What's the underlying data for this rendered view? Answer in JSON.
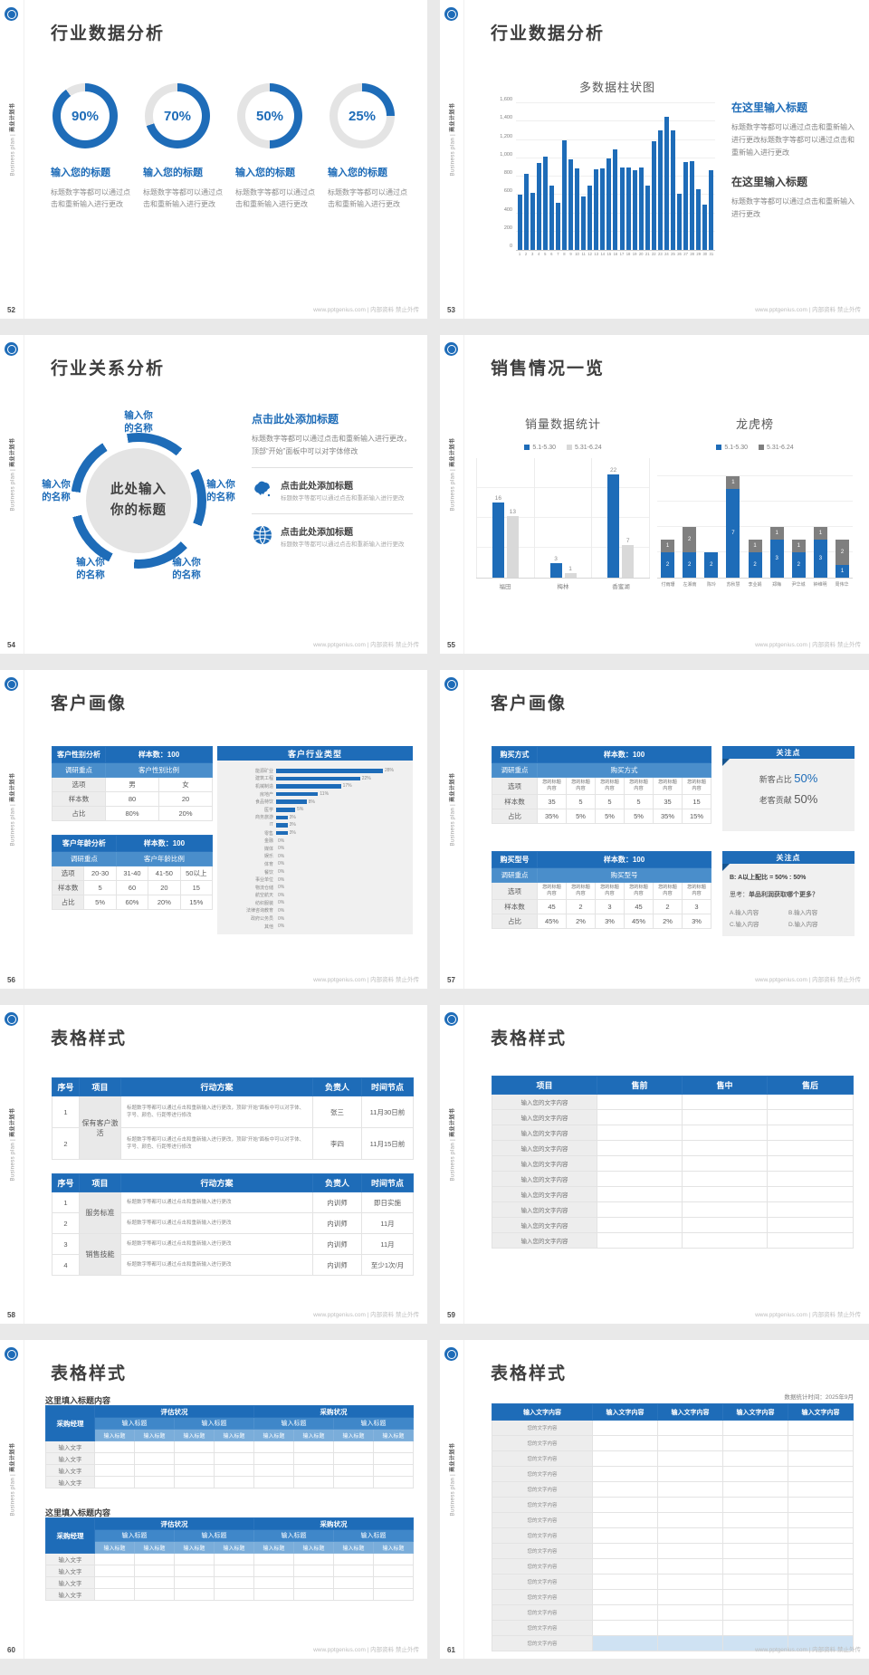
{
  "colors": {
    "primary": "#1e6cb8",
    "mid_blue": "#4a8ecb",
    "row2_blue": "#3f87c9",
    "row3_blue": "#7aadda",
    "bar_gray": "#d9d9d9",
    "dark_gray": "#7f7f7f",
    "panel_gray": "#f0f0f0",
    "highlight": "#cfe2f3"
  },
  "footer": {
    "site": "www.pptgenius.com | 内部资料 禁止外传"
  },
  "sidebar": {
    "en": "Business plan",
    "sep": "|",
    "zh": "商业计划书"
  },
  "slides": {
    "s52": {
      "page": "52",
      "title": "行业数据分析",
      "item_title": "输入您的标题",
      "item_desc": "标题数字等都可以通过点击和重新输入进行更改",
      "donuts": [
        {
          "percent": 90,
          "label": "90%"
        },
        {
          "percent": 70,
          "label": "70%"
        },
        {
          "percent": 50,
          "label": "50%"
        },
        {
          "percent": 25,
          "label": "25%"
        }
      ]
    },
    "s53": {
      "page": "53",
      "title": "行业数据分析",
      "blocks": [
        {
          "title": "在这里输入标题",
          "desc": "标题数字等都可以通过点击和重新输入进行更改标题数字等都可以通过点击和重新输入进行更改"
        },
        {
          "title": "在这里输入标题",
          "desc": "标题数字等都可以通过点击和重新输入进行更改"
        }
      ]
    },
    "s54": {
      "page": "54",
      "title": "行业关系分析",
      "center_line1": "此处输入",
      "center_line2": "你的标题",
      "node_line1": "输入你",
      "node_line2": "的名称",
      "right_title": "点击此处添加标题",
      "right_desc": "标题数字等都可以通过点击和重新输入进行更改，顶部“开始”面板中可以对字体修改",
      "items": [
        {
          "icon": "china-map-icon",
          "title": "点击此处添加标题",
          "desc": "标题数字等都可以通过点击和重新输入进行更改"
        },
        {
          "icon": "globe-icon",
          "title": "点击此处添加标题",
          "desc": "标题数字等都可以通过点击和重新输入进行更改"
        }
      ]
    },
    "s55": {
      "page": "55",
      "title": "销售情况一览"
    },
    "s56": {
      "page": "56",
      "title": "客户画像",
      "tables": [
        {
          "head_left": "客户性别分析",
          "head_right": "样本数：100",
          "sub_left": "调研重点",
          "sub_right": "客户性别比例",
          "rows": [
            [
              "选项",
              "男",
              "女"
            ],
            [
              "样本数",
              "80",
              "20"
            ],
            [
              "占比",
              "80%",
              "20%"
            ]
          ]
        },
        {
          "head_left": "客户年龄分析",
          "head_right": "样本数：100",
          "sub_left": "调研重点",
          "sub_right": "客户年龄比例",
          "rows": [
            [
              "选项",
              "20-30",
              "31-40",
              "41-50",
              "50以上"
            ],
            [
              "样本数",
              "5",
              "60",
              "20",
              "15"
            ],
            [
              "占比",
              "5%",
              "60%",
              "20%",
              "15%"
            ]
          ]
        }
      ]
    },
    "s57": {
      "page": "57",
      "title": "客户画像",
      "tables": [
        {
          "head_left": "购买方式",
          "head_right": "样本数：100",
          "sub_left": "调研重点",
          "sub_right": "购买方式",
          "option_label": "选项",
          "option_cell": "您的标题内容",
          "option_count": 6,
          "rows": [
            [
              "样本数",
              "35",
              "5",
              "5",
              "5",
              "35",
              "15"
            ],
            [
              "占比",
              "35%",
              "5%",
              "5%",
              "5%",
              "35%",
              "15%"
            ]
          ]
        },
        {
          "head_left": "购买型号",
          "head_right": "样本数：100",
          "sub_left": "调研重点",
          "sub_right": "购买型号",
          "option_label": "选项",
          "option_cell": "您的标题内容",
          "option_count": 6,
          "rows": [
            [
              "样本数",
              "45",
              "2",
              "3",
              "45",
              "2",
              "3"
            ],
            [
              "占比",
              "45%",
              "2%",
              "3%",
              "45%",
              "2%",
              "3%"
            ]
          ]
        }
      ],
      "panel1": {
        "title": "关注点",
        "lines": [
          {
            "label": "新客占比 ",
            "value": "50%"
          },
          {
            "label": "老客贡献 ",
            "value": "50%"
          }
        ]
      },
      "panel2": {
        "title": "关注点",
        "bold_line": "B: A以上配比 = 50% : 50%",
        "think_prefix": "思考：",
        "think_bold": "单品利润获取哪个更多？",
        "options": [
          "A.输入内容",
          "B.输入内容",
          "C.输入内容",
          "D.输入内容"
        ]
      }
    },
    "s58": {
      "page": "58",
      "title": "表格样式",
      "headers": [
        "序号",
        "项目",
        "行动方案",
        "负责人",
        "时间节点"
      ],
      "tables": [
        {
          "groups": [
            {
              "label": "保有客户激活",
              "rows": [
                {
                  "no": "1",
                  "plan": "标题数字等都可以通过点击和重新输入进行更改，顶部“开始”面板中可以对字体、字号、颜色、行距等进行修改",
                  "owner": "张三",
                  "time": "11月30日前"
                },
                {
                  "no": "2",
                  "plan": "标题数字等都可以通过点击和重新输入进行更改，顶部“开始”面板中可以对字体、字号、颜色、行距等进行修改",
                  "owner": "李四",
                  "time": "11月15日前"
                }
              ]
            }
          ]
        },
        {
          "groups": [
            {
              "label": "服务标准",
              "rows": [
                {
                  "no": "1",
                  "plan": "标题数字等都可以通过点击和重新输入进行更改",
                  "owner": "内训师",
                  "time": "即日实施"
                },
                {
                  "no": "2",
                  "plan": "标题数字等都可以通过点击和重新输入进行更改",
                  "owner": "内训师",
                  "time": "11月"
                }
              ]
            },
            {
              "label": "销售技能",
              "rows": [
                {
                  "no": "3",
                  "plan": "标题数字等都可以通过点击和重新输入进行更改",
                  "owner": "内训师",
                  "time": "11月"
                },
                {
                  "no": "4",
                  "plan": "标题数字等都可以通过点击和重新输入进行更改",
                  "owner": "内训师",
                  "time": "至少1次/月"
                }
              ]
            }
          ]
        }
      ]
    },
    "s59": {
      "page": "59",
      "title": "表格样式",
      "headers": [
        "项目",
        "售前",
        "售中",
        "售后"
      ],
      "row_label": "输入您的文字内容",
      "row_count": 10
    },
    "s60": {
      "page": "60",
      "title": "表格样式",
      "block_label": "这里填入标题内容",
      "corner": "采购经理",
      "group_headers": [
        "评估状况",
        "采购状况"
      ],
      "mid_header": "输入标题",
      "sub_header": "输入标题",
      "body_label": "输入文字",
      "body_rows": 4,
      "data_cols": 8,
      "block_count": 2
    },
    "s61": {
      "page": "61",
      "title": "表格样式",
      "note": "数据统计时间：2025年9月",
      "header_cell": "输入文字内容",
      "header_count": 5,
      "row_label": "您的文字内容",
      "row_count": 15
    }
  },
  "chart_data": [
    {
      "type": "bar",
      "slide": "53",
      "title": "多数据柱状图",
      "x": [
        "1",
        "2",
        "3",
        "4",
        "5",
        "6",
        "7",
        "8",
        "9",
        "10",
        "11",
        "12",
        "13",
        "14",
        "15",
        "16",
        "17",
        "18",
        "19",
        "20",
        "21",
        "22",
        "23",
        "24",
        "25",
        "26",
        "27",
        "28",
        "29",
        "30",
        "31"
      ],
      "values": [
        600,
        830,
        620,
        950,
        1020,
        700,
        510,
        1200,
        990,
        890,
        580,
        700,
        880,
        890,
        1000,
        1100,
        900,
        900,
        870,
        900,
        700,
        1190,
        1300,
        1450,
        1300,
        610,
        960,
        970,
        660,
        490,
        870
      ],
      "ylim": [
        0,
        1600
      ],
      "ytick_labels": [
        "0",
        "200",
        "400",
        "600",
        "800",
        "1,000",
        "1,200",
        "1,400",
        "1,600"
      ],
      "grid": true,
      "legend_position": "none"
    },
    {
      "type": "bar",
      "slide": "55",
      "title": "销量数据统计",
      "categories": [
        "福田",
        "梅林",
        "香蜜湖"
      ],
      "series": [
        {
          "name": "5.1-5.30",
          "color": "#1e6cb8",
          "values": [
            16,
            3,
            22
          ]
        },
        {
          "name": "5.31-6.24",
          "color": "#d9d9d9",
          "values": [
            13,
            1,
            7
          ]
        }
      ],
      "ylim": [
        0,
        24
      ],
      "grid": true,
      "legend_position": "top"
    },
    {
      "type": "bar",
      "stacked": true,
      "slide": "55",
      "title": "龙虎榜",
      "categories": [
        "付雨珊",
        "左湘南",
        "陈玲",
        "苏秋慧",
        "李业娟",
        "郑梅",
        "尹华城",
        "钟维明",
        "周伟华"
      ],
      "series": [
        {
          "name": "5.1-5.30",
          "color": "#1e6cb8",
          "values": [
            2,
            2,
            2,
            7,
            2,
            3,
            2,
            3,
            1
          ]
        },
        {
          "name": "5.31-6.24",
          "color": "#7f7f7f",
          "values": [
            1,
            2,
            0,
            1,
            1,
            1,
            1,
            1,
            2
          ]
        }
      ],
      "ylim": [
        0,
        8
      ],
      "grid": true,
      "legend_position": "top"
    },
    {
      "type": "bar-horizontal",
      "slide": "56",
      "title": "客户行业类型",
      "categories": [
        "能源矿业",
        "建筑工程",
        "机械制造",
        "房地产",
        "食品特饮",
        "医学",
        "商务旅游",
        "IT",
        "零售",
        "金融",
        "媒体",
        "娱乐",
        "体育",
        "餐饮",
        "事业单位",
        "物流仓储",
        "航空航天",
        "纺织服装",
        "法律咨询教育",
        "政府公务员",
        "其他"
      ],
      "values": [
        28,
        22,
        17,
        11,
        8,
        5,
        3,
        3,
        3,
        0,
        0,
        0,
        0,
        0,
        0,
        0,
        0,
        0,
        0,
        0,
        0
      ],
      "unit": "%"
    },
    {
      "type": "pie",
      "slide": "52",
      "title": "完成度圆环",
      "categories": [
        "90%",
        "70%",
        "50%",
        "25%"
      ],
      "values": [
        90,
        70,
        50,
        25
      ]
    }
  ]
}
